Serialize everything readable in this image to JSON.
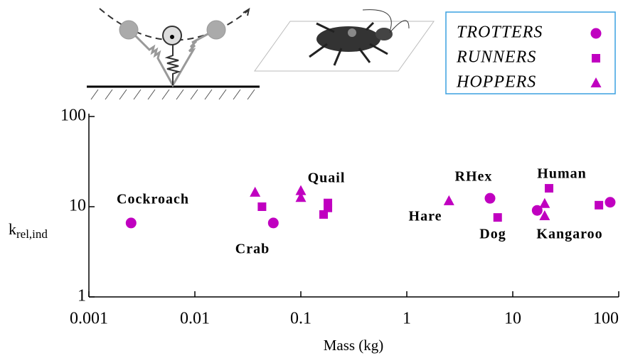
{
  "chart_data": {
    "type": "scatter",
    "xlabel": "Mass (kg)",
    "ylabel": {
      "main": "k",
      "subscript": "rel,ind"
    },
    "xscale": "log",
    "yscale": "log",
    "xlim": [
      0.001,
      100
    ],
    "ylim": [
      1,
      100
    ],
    "xticks": [
      0.001,
      0.01,
      0.1,
      1,
      10,
      100
    ],
    "yticks": [
      1,
      10,
      100
    ],
    "legend": "top-right",
    "series": [
      {
        "name": "TROTTERS",
        "marker": "circle",
        "color": "#c000c0",
        "x": [
          0.0025,
          0.055,
          6.1,
          17,
          83
        ],
        "values": [
          6.6,
          6.6,
          12.4,
          9.1,
          11.2
        ]
      },
      {
        "name": "RUNNERS",
        "marker": "square",
        "color": "#c000c0",
        "x": [
          0.043,
          0.164,
          0.18,
          0.18,
          7.2,
          22,
          65
        ],
        "values": [
          10,
          8.2,
          9.7,
          11,
          7.6,
          16,
          10.4
        ]
      },
      {
        "name": "HOPPERS",
        "marker": "triangle",
        "color": "#c000c0",
        "x": [
          0.037,
          0.1,
          0.1,
          2.5,
          20,
          20
        ],
        "values": [
          14.4,
          15,
          12.6,
          11.6,
          10.8,
          7.9
        ]
      }
    ],
    "annotations": [
      "Cockroach",
      "Crab",
      "Quail",
      "Hare",
      "RHex",
      "Dog",
      "Human",
      "Kangaroo"
    ]
  }
}
